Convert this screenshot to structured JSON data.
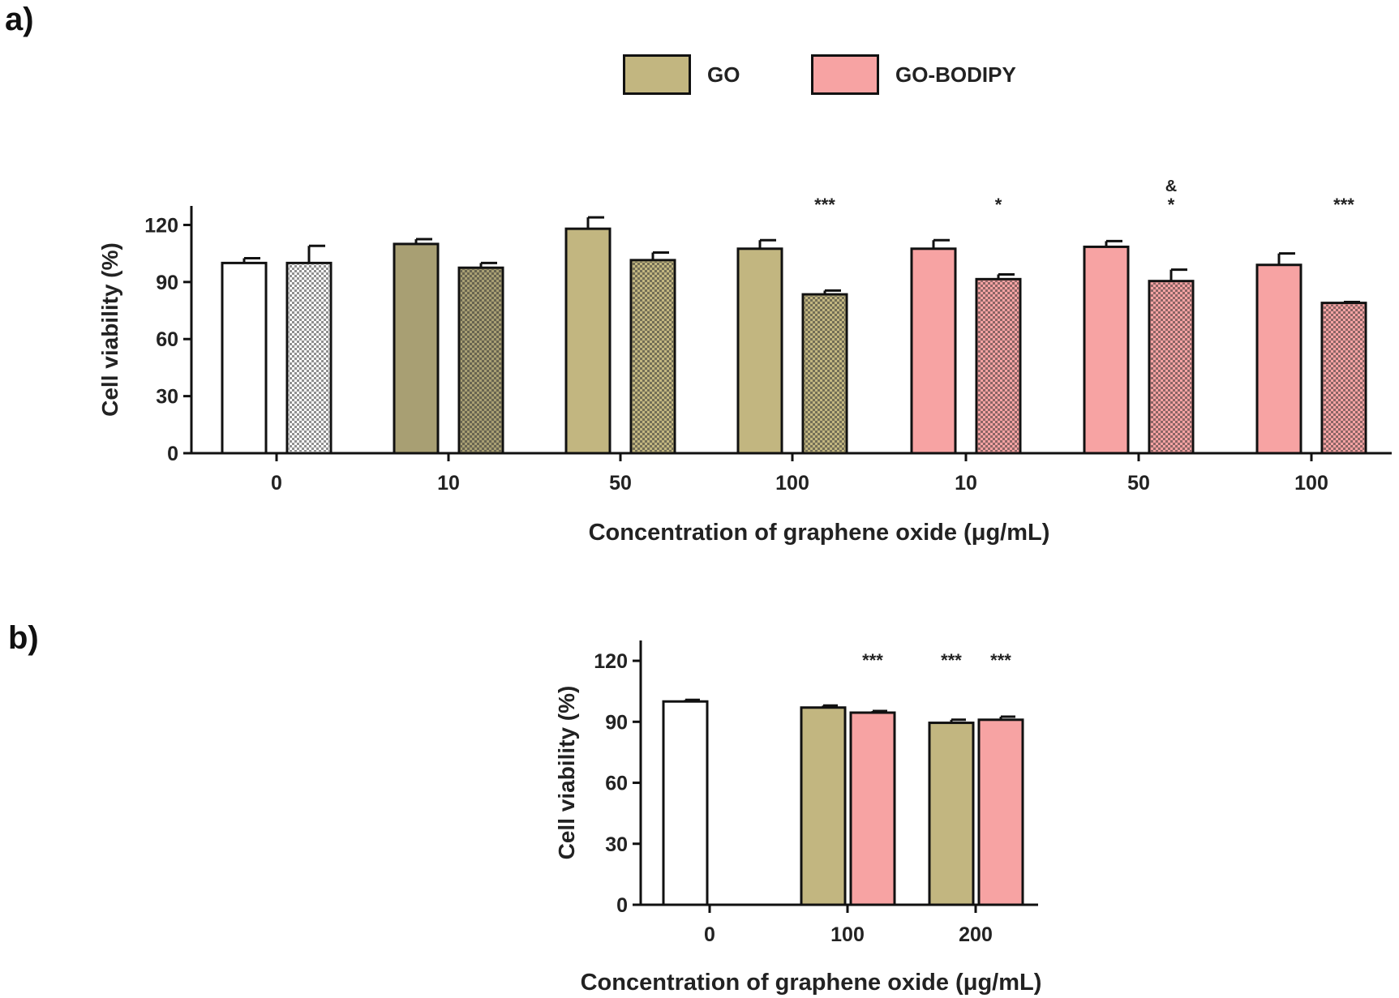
{
  "panels": {
    "a": "a)",
    "b": "b)"
  },
  "legend": [
    {
      "label": "GO",
      "color": "#c2b680"
    },
    {
      "label": "GO-BODIPY",
      "color": "#f7a3a3"
    }
  ],
  "chart_data": [
    {
      "type": "bar",
      "panel": "a)",
      "xlabel": "Concentration of graphene oxide (μg/mL)",
      "ylabel": "Cell viability (%)",
      "ylim": [
        0,
        130
      ],
      "yticks": [
        0,
        30,
        60,
        90,
        120
      ],
      "group_labels": [
        "0",
        "10",
        "50",
        "100",
        "10",
        "50",
        "100"
      ],
      "bars": [
        {
          "group": 0,
          "slot": 0,
          "value": 100,
          "error": 2.5,
          "fill": "#ffffff",
          "pattern": false,
          "sig": ""
        },
        {
          "group": 0,
          "slot": 1,
          "value": 100,
          "error": 9,
          "fill": "#ffffff",
          "pattern": true,
          "sig": ""
        },
        {
          "group": 1,
          "slot": 0,
          "value": 110,
          "error": 2.5,
          "fill": "#a89f73",
          "pattern": false,
          "sig": ""
        },
        {
          "group": 1,
          "slot": 1,
          "value": 97.5,
          "error": 2.5,
          "fill": "#a89f73",
          "pattern": true,
          "sig": ""
        },
        {
          "group": 2,
          "slot": 0,
          "value": 118,
          "error": 6,
          "fill": "#c2b680",
          "pattern": false,
          "sig": ""
        },
        {
          "group": 2,
          "slot": 1,
          "value": 101.5,
          "error": 4,
          "fill": "#c2b680",
          "pattern": true,
          "sig": ""
        },
        {
          "group": 3,
          "slot": 0,
          "value": 107.5,
          "error": 4.5,
          "fill": "#c2b680",
          "pattern": false,
          "sig": ""
        },
        {
          "group": 3,
          "slot": 1,
          "value": 83.5,
          "error": 2,
          "fill": "#c2b680",
          "pattern": true,
          "sig": "***"
        },
        {
          "group": 4,
          "slot": 0,
          "value": 107.5,
          "error": 4.5,
          "fill": "#f7a3a3",
          "pattern": false,
          "sig": ""
        },
        {
          "group": 4,
          "slot": 1,
          "value": 91.5,
          "error": 2.5,
          "fill": "#f7a3a3",
          "pattern": true,
          "sig": "*"
        },
        {
          "group": 5,
          "slot": 0,
          "value": 108.5,
          "error": 3,
          "fill": "#f7a3a3",
          "pattern": false,
          "sig": ""
        },
        {
          "group": 5,
          "slot": 1,
          "value": 90.5,
          "error": 6,
          "fill": "#f7a3a3",
          "pattern": true,
          "sig": "*",
          "sig2": "&"
        },
        {
          "group": 6,
          "slot": 0,
          "value": 99,
          "error": 6,
          "fill": "#f7a3a3",
          "pattern": false,
          "sig": ""
        },
        {
          "group": 6,
          "slot": 1,
          "value": 79,
          "error": 0.5,
          "fill": "#f7a3a3",
          "pattern": true,
          "sig": "***"
        }
      ]
    },
    {
      "type": "bar",
      "panel": "b)",
      "xlabel": "Concentration of graphene oxide (μg/mL)",
      "ylabel": "Cell viability (%)",
      "ylim": [
        0,
        130
      ],
      "yticks": [
        0,
        30,
        60,
        90,
        120
      ],
      "group_labels": [
        "0",
        "100",
        "200"
      ],
      "bars": [
        {
          "group": 0,
          "slot": 0,
          "value": 100,
          "error": 0.8,
          "fill": "#ffffff",
          "sig": ""
        },
        {
          "group": 1,
          "slot": 0,
          "value": 97,
          "error": 1,
          "fill": "#c2b680",
          "sig": ""
        },
        {
          "group": 1,
          "slot": 1,
          "value": 94.5,
          "error": 0.8,
          "fill": "#f7a3a3",
          "sig": "***"
        },
        {
          "group": 2,
          "slot": 0,
          "value": 89.5,
          "error": 1.5,
          "fill": "#c2b680",
          "sig": "***"
        },
        {
          "group": 2,
          "slot": 1,
          "value": 91,
          "error": 1.5,
          "fill": "#f7a3a3",
          "sig": "***"
        }
      ]
    }
  ]
}
